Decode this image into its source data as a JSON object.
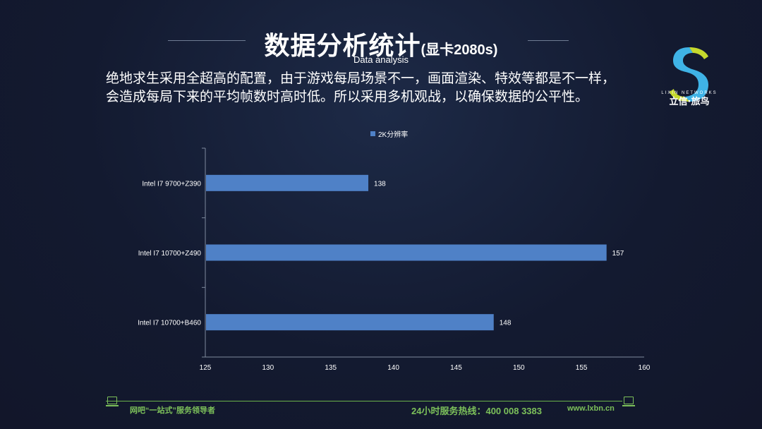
{
  "header": {
    "title": "数据分析统计",
    "title_suffix": "(显卡2080s)",
    "subtitle": "Data analysis",
    "description_line1": "绝地求生采用全超高的配置，由于游戏每局场景不一，画面渲染、特效等都是不一样，",
    "description_line2": "会造成每局下来的平均帧数时高时低。所以采用多机观战，以确保数据的公平性。"
  },
  "logo": {
    "brand_en": "LIXIN NETWORKS",
    "brand_cn": "立信·旅鸟",
    "colors": [
      "#3fb3e6",
      "#c6d92d"
    ]
  },
  "chart_data": {
    "type": "bar",
    "orientation": "horizontal",
    "categories": [
      "Intel I7 9700+Z390",
      "Intel I7 10700+Z490",
      "Intel I7 10700+B460"
    ],
    "series": [
      {
        "name": "2K分辨率",
        "values": [
          138,
          157,
          148
        ],
        "color": "#4f81c7"
      }
    ],
    "xlim": [
      125,
      160
    ],
    "xticks": [
      "125",
      "130",
      "135",
      "140",
      "145",
      "150",
      "155",
      "160"
    ],
    "legend_position": "top",
    "grid": false
  },
  "footer": {
    "left_text": "网吧“一站式”服务领导者",
    "hotline": "24小时服务热线：400 008 3383",
    "url": "www.lxbn.cn",
    "accent_color": "#7cc05a",
    "icon": "laptop-icon"
  }
}
